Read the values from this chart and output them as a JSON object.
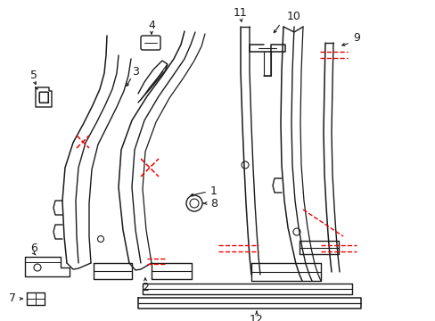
{
  "bg": "#ffffff",
  "lc": "#1a1a1a",
  "rc": "#ee0000",
  "figsize": [
    4.89,
    3.6
  ],
  "dpi": 100,
  "fs": 9
}
